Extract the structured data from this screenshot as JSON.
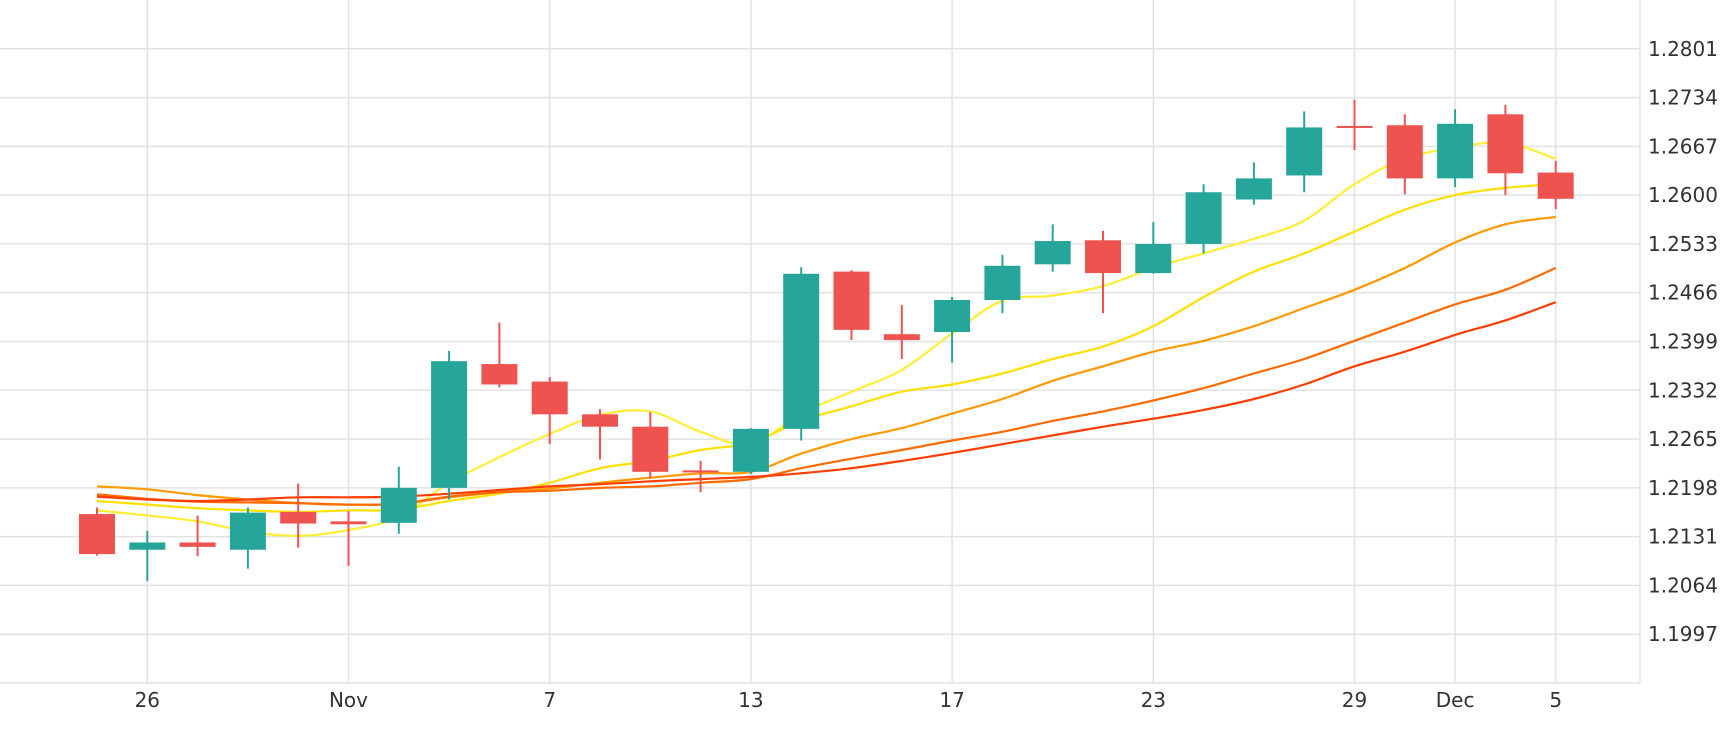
{
  "chart_data": {
    "type": "candlestick",
    "title": "",
    "xlabel": "",
    "ylabel": "",
    "ylim": [
      1.193,
      1.2868
    ],
    "grid": true,
    "y_axis_side": "right",
    "x_ticks": [
      {
        "label": "26",
        "index": 1
      },
      {
        "label": "Nov",
        "index": 5
      },
      {
        "label": "7",
        "index": 9
      },
      {
        "label": "13",
        "index": 13
      },
      {
        "label": "17",
        "index": 17
      },
      {
        "label": "23",
        "index": 21
      },
      {
        "label": "29",
        "index": 25
      },
      {
        "label": "Dec",
        "index": 27
      },
      {
        "label": "5",
        "index": 29
      }
    ],
    "y_ticks": [
      1.1997,
      1.2064,
      1.2131,
      1.2198,
      1.2265,
      1.2332,
      1.2399,
      1.2466,
      1.2533,
      1.26,
      1.2667,
      1.2734,
      1.2801
    ],
    "y_tick_labels": [
      "1.1997",
      "1.2064",
      "1.2131",
      "1.2198",
      "1.2265",
      "1.2332",
      "1.2399",
      "1.2466",
      "1.2533",
      "1.2600",
      "1.2667",
      "1.2734",
      "1.2801"
    ],
    "colors": {
      "up": "#26a69a",
      "down": "#ef5350",
      "grid": "#e3e3e3",
      "text": "#333333"
    },
    "candles": [
      {
        "open": 1.2162,
        "high": 1.2171,
        "low": 1.2105,
        "close": 1.2107
      },
      {
        "open": 1.2113,
        "high": 1.2139,
        "low": 1.207,
        "close": 1.2123
      },
      {
        "open": 1.2123,
        "high": 1.216,
        "low": 1.2104,
        "close": 1.2117
      },
      {
        "open": 1.2113,
        "high": 1.2171,
        "low": 1.2087,
        "close": 1.2164
      },
      {
        "open": 1.2165,
        "high": 1.2204,
        "low": 1.2116,
        "close": 1.2149
      },
      {
        "open": 1.2152,
        "high": 1.2166,
        "low": 1.2091,
        "close": 1.2148
      },
      {
        "open": 1.215,
        "high": 1.2227,
        "low": 1.2135,
        "close": 1.2198
      },
      {
        "open": 1.2198,
        "high": 1.2386,
        "low": 1.2182,
        "close": 1.2372
      },
      {
        "open": 1.2368,
        "high": 1.2425,
        "low": 1.2336,
        "close": 1.234
      },
      {
        "open": 1.2344,
        "high": 1.235,
        "low": 1.2258,
        "close": 1.2299
      },
      {
        "open": 1.2299,
        "high": 1.2306,
        "low": 1.2237,
        "close": 1.2282
      },
      {
        "open": 1.2282,
        "high": 1.2302,
        "low": 1.2211,
        "close": 1.222
      },
      {
        "open": 1.2222,
        "high": 1.2235,
        "low": 1.2192,
        "close": 1.222
      },
      {
        "open": 1.222,
        "high": 1.228,
        "low": 1.2217,
        "close": 1.2279
      },
      {
        "open": 1.2279,
        "high": 1.2501,
        "low": 1.2263,
        "close": 1.2492
      },
      {
        "open": 1.2495,
        "high": 1.2497,
        "low": 1.2401,
        "close": 1.2415
      },
      {
        "open": 1.2409,
        "high": 1.2449,
        "low": 1.2375,
        "close": 1.2401
      },
      {
        "open": 1.2412,
        "high": 1.246,
        "low": 1.237,
        "close": 1.2456
      },
      {
        "open": 1.2456,
        "high": 1.2518,
        "low": 1.2438,
        "close": 1.2503
      },
      {
        "open": 1.2505,
        "high": 1.256,
        "low": 1.2495,
        "close": 1.2537
      },
      {
        "open": 1.2538,
        "high": 1.2551,
        "low": 1.2438,
        "close": 1.2493
      },
      {
        "open": 1.2493,
        "high": 1.2563,
        "low": 1.2492,
        "close": 1.2533
      },
      {
        "open": 1.2533,
        "high": 1.2615,
        "low": 1.252,
        "close": 1.2604
      },
      {
        "open": 1.2594,
        "high": 1.2645,
        "low": 1.2587,
        "close": 1.2623
      },
      {
        "open": 1.2627,
        "high": 1.2715,
        "low": 1.2604,
        "close": 1.2693
      },
      {
        "open": 1.2695,
        "high": 1.2731,
        "low": 1.2662,
        "close": 1.2693
      },
      {
        "open": 1.2696,
        "high": 1.2711,
        "low": 1.2601,
        "close": 1.2623
      },
      {
        "open": 1.2623,
        "high": 1.2718,
        "low": 1.2611,
        "close": 1.2698
      },
      {
        "open": 1.2711,
        "high": 1.2724,
        "low": 1.26,
        "close": 1.263
      },
      {
        "open": 1.2631,
        "high": 1.2647,
        "low": 1.2581,
        "close": 1.2595
      }
    ],
    "series": [
      {
        "color": "#ffee33",
        "values": [
          1.2167,
          1.216,
          1.2152,
          1.2138,
          1.2132,
          1.214,
          1.2158,
          1.2205,
          1.224,
          1.2272,
          1.2298,
          1.2303,
          1.2275,
          1.2258,
          1.23,
          1.233,
          1.236,
          1.241,
          1.2455,
          1.2462,
          1.2475,
          1.25,
          1.252,
          1.254,
          1.2565,
          1.2615,
          1.265,
          1.2665,
          1.2672,
          1.265
        ]
      },
      {
        "color": "#ffe000",
        "values": [
          1.218,
          1.2175,
          1.217,
          1.2167,
          1.2165,
          1.2167,
          1.2168,
          1.218,
          1.219,
          1.2205,
          1.2225,
          1.2235,
          1.225,
          1.226,
          1.229,
          1.231,
          1.233,
          1.234,
          1.2355,
          1.2375,
          1.2392,
          1.242,
          1.246,
          1.2495,
          1.252,
          1.255,
          1.258,
          1.26,
          1.261,
          1.2615
        ]
      },
      {
        "color": "#ff9900",
        "values": [
          1.22,
          1.2196,
          1.2188,
          1.2182,
          1.2177,
          1.2175,
          1.2176,
          1.2185,
          1.2192,
          1.2197,
          1.2205,
          1.2212,
          1.2218,
          1.222,
          1.2245,
          1.2265,
          1.228,
          1.23,
          1.232,
          1.2345,
          1.2365,
          1.2385,
          1.24,
          1.242,
          1.2445,
          1.247,
          1.25,
          1.2535,
          1.256,
          1.257
        ]
      },
      {
        "color": "#ff6a00",
        "values": [
          1.2189,
          1.2183,
          1.2179,
          1.2178,
          1.2177,
          1.2175,
          1.2176,
          1.2186,
          1.2192,
          1.2194,
          1.2198,
          1.22,
          1.2205,
          1.221,
          1.2225,
          1.2238,
          1.225,
          1.2263,
          1.2275,
          1.229,
          1.2303,
          1.2318,
          1.2335,
          1.2355,
          1.2375,
          1.24,
          1.2425,
          1.245,
          1.247,
          1.25
        ]
      },
      {
        "color": "#ff3d00",
        "values": [
          1.2186,
          1.2182,
          1.218,
          1.2182,
          1.2185,
          1.2185,
          1.2186,
          1.219,
          1.2195,
          1.22,
          1.2203,
          1.2207,
          1.221,
          1.2213,
          1.2218,
          1.2225,
          1.2235,
          1.2246,
          1.2258,
          1.227,
          1.2282,
          1.2293,
          1.2305,
          1.232,
          1.234,
          1.2365,
          1.2385,
          1.2408,
          1.2428,
          1.2453
        ]
      }
    ]
  }
}
